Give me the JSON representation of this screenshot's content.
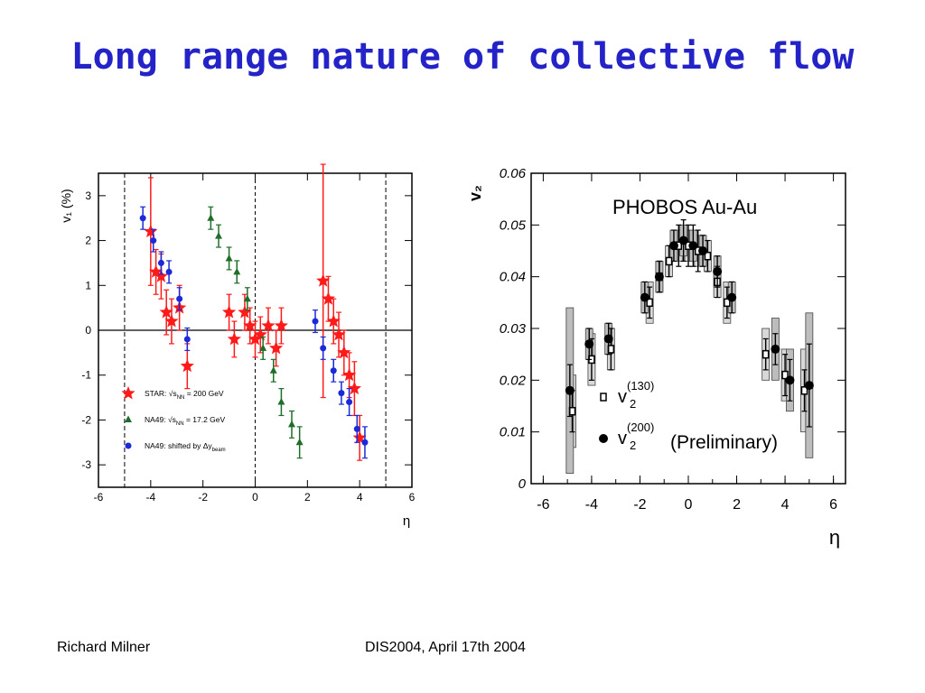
{
  "slide": {
    "title": "Long range nature of collective flow",
    "footer_left": "Richard Milner",
    "footer_right": "DIS2004, April 17th 2004"
  },
  "colors": {
    "title": "#2323c8",
    "star": "#ff1a1a",
    "na49_green": "#1e6e2a",
    "na49_blue": "#1a2ad8"
  },
  "chart_data": [
    {
      "type": "scatter",
      "xlabel": "η",
      "ylabel": "v₁ (%)",
      "xlim": [
        -6,
        6
      ],
      "ylim": [
        -3.5,
        3.5
      ],
      "x_ticks": [
        -6,
        -4,
        -2,
        0,
        2,
        4,
        6
      ],
      "y_ticks": [
        3,
        2,
        1,
        0,
        -1,
        -2,
        -3
      ],
      "grid": false,
      "legend_position": "bottom-left",
      "legend": [
        {
          "marker": "star",
          "color": "#ff1a1a",
          "label_prefix": "STAR: ",
          "label_sqrt": "s",
          "label_sub": "NN",
          "label_suffix": " = 200 GeV"
        },
        {
          "marker": "triangle",
          "color": "#1e6e2a",
          "label_prefix": "NA49: ",
          "label_sqrt": "s",
          "label_sub": "NN",
          "label_suffix": " = 17.2 GeV"
        },
        {
          "marker": "circle",
          "color": "#1a2ad8",
          "label_prefix": "NA49: shifted by ",
          "label_sqrt": "",
          "label_sub": "beam",
          "label_suffix": "Δy"
        }
      ],
      "series": [
        {
          "name": "STAR: √sNN = 200 GeV",
          "marker": "star",
          "color": "#ff1a1a",
          "points": [
            {
              "x": -4.0,
              "y": 2.2,
              "err": 1.2
            },
            {
              "x": -3.8,
              "y": 1.3,
              "err": 0.5
            },
            {
              "x": -3.6,
              "y": 1.2,
              "err": 0.5
            },
            {
              "x": -3.4,
              "y": 0.4,
              "err": 0.5
            },
            {
              "x": -3.2,
              "y": 0.2,
              "err": 0.5
            },
            {
              "x": -2.9,
              "y": 0.5,
              "err": 0.5
            },
            {
              "x": -2.6,
              "y": -0.8,
              "err": 0.5
            },
            {
              "x": -1.0,
              "y": 0.4,
              "err": 0.4
            },
            {
              "x": -0.8,
              "y": -0.2,
              "err": 0.4
            },
            {
              "x": -0.4,
              "y": 0.4,
              "err": 0.4
            },
            {
              "x": -0.2,
              "y": 0.1,
              "err": 0.4
            },
            {
              "x": 0.0,
              "y": -0.2,
              "err": 0.4
            },
            {
              "x": 0.2,
              "y": -0.1,
              "err": 0.4
            },
            {
              "x": 0.5,
              "y": 0.1,
              "err": 0.4
            },
            {
              "x": 0.8,
              "y": -0.4,
              "err": 0.4
            },
            {
              "x": 1.0,
              "y": 0.1,
              "err": 0.4
            },
            {
              "x": 2.6,
              "y": 1.1,
              "err": 2.6
            },
            {
              "x": 2.8,
              "y": 0.7,
              "err": 0.5
            },
            {
              "x": 3.0,
              "y": 0.2,
              "err": 0.5
            },
            {
              "x": 3.2,
              "y": -0.1,
              "err": 0.5
            },
            {
              "x": 3.4,
              "y": -0.5,
              "err": 0.5
            },
            {
              "x": 3.6,
              "y": -1.0,
              "err": 0.5
            },
            {
              "x": 3.8,
              "y": -1.3,
              "err": 0.6
            },
            {
              "x": 4.0,
              "y": -2.4,
              "err": 0.5
            }
          ]
        },
        {
          "name": "NA49: √sNN = 17.2 GeV",
          "marker": "triangle",
          "color": "#1e6e2a",
          "points": [
            {
              "x": -1.7,
              "y": 2.5,
              "err": 0.25
            },
            {
              "x": -1.4,
              "y": 2.1,
              "err": 0.25
            },
            {
              "x": -1.0,
              "y": 1.6,
              "err": 0.25
            },
            {
              "x": -0.7,
              "y": 1.3,
              "err": 0.25
            },
            {
              "x": -0.3,
              "y": 0.7,
              "err": 0.25
            },
            {
              "x": 0.3,
              "y": -0.4,
              "err": 0.25
            },
            {
              "x": 0.7,
              "y": -0.9,
              "err": 0.25
            },
            {
              "x": 1.0,
              "y": -1.6,
              "err": 0.3
            },
            {
              "x": 1.4,
              "y": -2.1,
              "err": 0.3
            },
            {
              "x": 1.7,
              "y": -2.5,
              "err": 0.35
            }
          ]
        },
        {
          "name": "NA49: shifted by Δy_beam",
          "marker": "circle",
          "color": "#1a2ad8",
          "points": [
            {
              "x": -4.3,
              "y": 2.5,
              "err": 0.25
            },
            {
              "x": -3.9,
              "y": 2.0,
              "err": 0.25
            },
            {
              "x": -3.6,
              "y": 1.5,
              "err": 0.25
            },
            {
              "x": -3.3,
              "y": 1.3,
              "err": 0.25
            },
            {
              "x": -2.9,
              "y": 0.7,
              "err": 0.25
            },
            {
              "x": -2.6,
              "y": -0.2,
              "err": 0.25
            },
            {
              "x": 2.3,
              "y": 0.2,
              "err": 0.25
            },
            {
              "x": 2.6,
              "y": -0.4,
              "err": 0.25
            },
            {
              "x": 3.0,
              "y": -0.9,
              "err": 0.25
            },
            {
              "x": 3.3,
              "y": -1.4,
              "err": 0.25
            },
            {
              "x": 3.6,
              "y": -1.6,
              "err": 0.3
            },
            {
              "x": 3.9,
              "y": -2.2,
              "err": 0.3
            },
            {
              "x": 4.2,
              "y": -2.5,
              "err": 0.35
            }
          ]
        }
      ]
    },
    {
      "type": "scatter",
      "title": "PHOBOS Au-Au",
      "xlabel": "η",
      "ylabel": "v₂",
      "xlim": [
        -6.5,
        6.5
      ],
      "ylim": [
        0,
        0.06
      ],
      "x_ticks": [
        -6,
        -4,
        -2,
        0,
        2,
        4,
        6
      ],
      "y_ticks": [
        0.06,
        0.05,
        0.04,
        0.03,
        0.02,
        0.01,
        0
      ],
      "grid": false,
      "legend_position": "bottom-right",
      "legend_note": "(Preliminary)",
      "legend": [
        {
          "marker": "open-square",
          "label_main": "v",
          "label_sub": "2",
          "label_sup": "(130)"
        },
        {
          "marker": "filled-circle",
          "label_main": "v",
          "label_sub": "2",
          "label_sup": "(200)"
        }
      ],
      "series": [
        {
          "name": "v2(130)",
          "marker": "open-square",
          "color": "#000000",
          "points": [
            {
              "x": -4.8,
              "y": 0.014,
              "err": 0.004,
              "sys": 0.007
            },
            {
              "x": -4.0,
              "y": 0.024,
              "err": 0.004,
              "sys": 0.005
            },
            {
              "x": -3.2,
              "y": 0.026,
              "err": 0.004,
              "sys": 0.004
            },
            {
              "x": -1.6,
              "y": 0.035,
              "err": 0.003,
              "sys": 0.004
            },
            {
              "x": -1.2,
              "y": 0.04,
              "err": 0.003,
              "sys": 0.003
            },
            {
              "x": -0.8,
              "y": 0.043,
              "err": 0.003,
              "sys": 0.003
            },
            {
              "x": -0.4,
              "y": 0.046,
              "err": 0.004,
              "sys": 0.003
            },
            {
              "x": 0.0,
              "y": 0.046,
              "err": 0.004,
              "sys": 0.003
            },
            {
              "x": 0.4,
              "y": 0.045,
              "err": 0.004,
              "sys": 0.003
            },
            {
              "x": 0.8,
              "y": 0.044,
              "err": 0.003,
              "sys": 0.003
            },
            {
              "x": 1.2,
              "y": 0.039,
              "err": 0.003,
              "sys": 0.003
            },
            {
              "x": 1.6,
              "y": 0.035,
              "err": 0.003,
              "sys": 0.004
            },
            {
              "x": 3.2,
              "y": 0.025,
              "err": 0.003,
              "sys": 0.005
            },
            {
              "x": 4.0,
              "y": 0.021,
              "err": 0.004,
              "sys": 0.005
            },
            {
              "x": 4.8,
              "y": 0.018,
              "err": 0.004,
              "sys": 0.008
            }
          ]
        },
        {
          "name": "v2(200)",
          "marker": "filled-circle",
          "color": "#000000",
          "points": [
            {
              "x": -4.9,
              "y": 0.018,
              "err": 0.005,
              "sys": 0.016
            },
            {
              "x": -4.1,
              "y": 0.027,
              "err": 0.003,
              "sys": 0.003
            },
            {
              "x": -3.3,
              "y": 0.028,
              "err": 0.003,
              "sys": 0.003
            },
            {
              "x": -1.8,
              "y": 0.036,
              "err": 0.003,
              "sys": 0.003
            },
            {
              "x": -1.2,
              "y": 0.04,
              "err": 0.003,
              "sys": 0.003
            },
            {
              "x": -0.6,
              "y": 0.046,
              "err": 0.003,
              "sys": 0.003
            },
            {
              "x": -0.2,
              "y": 0.047,
              "err": 0.004,
              "sys": 0.003
            },
            {
              "x": 0.2,
              "y": 0.046,
              "err": 0.004,
              "sys": 0.003
            },
            {
              "x": 0.6,
              "y": 0.045,
              "err": 0.003,
              "sys": 0.003
            },
            {
              "x": 1.2,
              "y": 0.041,
              "err": 0.003,
              "sys": 0.003
            },
            {
              "x": 1.8,
              "y": 0.036,
              "err": 0.003,
              "sys": 0.003
            },
            {
              "x": 3.6,
              "y": 0.026,
              "err": 0.003,
              "sys": 0.006
            },
            {
              "x": 4.2,
              "y": 0.02,
              "err": 0.004,
              "sys": 0.006
            },
            {
              "x": 5.0,
              "y": 0.019,
              "err": 0.008,
              "sys": 0.014
            }
          ]
        }
      ]
    }
  ]
}
